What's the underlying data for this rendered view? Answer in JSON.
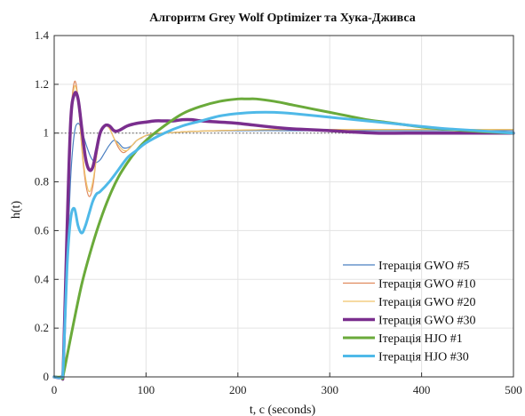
{
  "chart_data": {
    "type": "line",
    "title": "Алгоритм Grey Wolf Optimizer та Хука-Дживса",
    "xlabel": "t, c (seconds)",
    "ylabel": "h(t)",
    "xlim": [
      0,
      500
    ],
    "ylim": [
      0,
      1.4
    ],
    "xticks": [
      0,
      100,
      200,
      300,
      400,
      500
    ],
    "yticks": [
      0,
      0.2,
      0.4,
      0.6,
      0.8,
      1,
      1.2,
      1.4
    ],
    "xtick_labels": [
      "0",
      "100",
      "200",
      "300",
      "400",
      "500"
    ],
    "ytick_labels": [
      "0",
      "0.2",
      "0.4",
      "0.6",
      "0.8",
      "1",
      "1.2",
      "1.4"
    ],
    "grid": true,
    "reference_line": {
      "y": 1,
      "style": "dotted"
    },
    "legend_position": "bottom-right",
    "series": [
      {
        "name": "Ітерація GWO #5",
        "color": "#4a7fc1",
        "width": 1.2,
        "x": [
          0,
          8,
          10,
          14,
          18,
          22,
          26,
          30,
          35,
          40,
          45,
          50,
          55,
          60,
          65,
          70,
          75,
          80,
          85,
          90,
          95,
          100,
          110,
          120,
          140,
          160,
          200,
          250,
          300,
          350,
          400,
          450,
          500
        ],
        "y": [
          0,
          0,
          0.05,
          0.45,
          0.82,
          1.0,
          1.04,
          1.01,
          0.95,
          0.9,
          0.88,
          0.89,
          0.92,
          0.95,
          0.97,
          0.96,
          0.94,
          0.94,
          0.95,
          0.97,
          0.98,
          0.99,
          0.995,
          1.0,
          1.005,
          1.008,
          1.01,
          1.01,
          1.01,
          1.01,
          1.01,
          1.01,
          1.01
        ]
      },
      {
        "name": "Ітерація GWO #10",
        "color": "#e08a5e",
        "width": 1.2,
        "x": [
          0,
          8,
          10,
          14,
          18,
          22,
          26,
          30,
          34,
          38,
          42,
          46,
          50,
          55,
          60,
          65,
          70,
          75,
          80,
          85,
          90,
          100,
          110,
          120,
          140,
          160,
          200,
          250,
          300,
          350,
          400,
          450,
          500
        ],
        "y": [
          0,
          0,
          0.05,
          0.55,
          1.05,
          1.21,
          1.14,
          0.94,
          0.8,
          0.74,
          0.78,
          0.9,
          1.0,
          1.03,
          1.02,
          0.98,
          0.94,
          0.92,
          0.93,
          0.95,
          0.97,
          0.99,
          1.0,
          1.0,
          1.005,
          1.008,
          1.012,
          1.015,
          1.015,
          1.015,
          1.015,
          1.015,
          1.015
        ]
      },
      {
        "name": "Ітерація GWO #20",
        "color": "#f0c46a",
        "width": 1.2,
        "x": [
          0,
          8,
          10,
          14,
          18,
          22,
          26,
          30,
          34,
          38,
          42,
          46,
          50,
          55,
          60,
          65,
          70,
          75,
          80,
          85,
          90,
          100,
          110,
          120,
          140,
          160,
          200,
          250,
          300,
          350,
          400,
          450,
          500
        ],
        "y": [
          0,
          0,
          0.05,
          0.55,
          1.02,
          1.19,
          1.13,
          0.95,
          0.82,
          0.76,
          0.8,
          0.9,
          0.99,
          1.03,
          1.02,
          0.98,
          0.95,
          0.93,
          0.93,
          0.95,
          0.97,
          0.99,
          1.0,
          1.0,
          1.005,
          1.008,
          1.012,
          1.015,
          1.015,
          1.015,
          1.015,
          1.015,
          1.015
        ]
      },
      {
        "name": "Ітерація GWO #30",
        "color": "#7a2e8e",
        "width": 3.5,
        "x": [
          0,
          8,
          10,
          14,
          18,
          22,
          26,
          30,
          34,
          38,
          42,
          46,
          50,
          55,
          60,
          65,
          70,
          80,
          90,
          100,
          110,
          120,
          130,
          140,
          150,
          160,
          180,
          200,
          250,
          300,
          350,
          400,
          450,
          500
        ],
        "y": [
          0,
          0,
          0.05,
          0.6,
          1.05,
          1.16,
          1.14,
          1.02,
          0.9,
          0.85,
          0.86,
          0.93,
          1.0,
          1.03,
          1.03,
          1.01,
          1.01,
          1.03,
          1.04,
          1.045,
          1.05,
          1.05,
          1.05,
          1.055,
          1.055,
          1.05,
          1.045,
          1.04,
          1.02,
          1.01,
          1.0,
          1.0,
          1.0,
          1.0
        ]
      },
      {
        "name": "Ітерація HJO #1",
        "color": "#6aaa3a",
        "width": 3,
        "x": [
          0,
          8,
          10,
          20,
          30,
          40,
          50,
          60,
          70,
          80,
          90,
          100,
          120,
          140,
          160,
          180,
          200,
          210,
          220,
          240,
          260,
          280,
          300,
          320,
          340,
          360,
          380,
          400,
          420,
          440,
          460,
          480,
          500
        ],
        "y": [
          0,
          0,
          0.01,
          0.2,
          0.38,
          0.52,
          0.64,
          0.74,
          0.82,
          0.88,
          0.93,
          0.97,
          1.03,
          1.08,
          1.11,
          1.13,
          1.14,
          1.14,
          1.14,
          1.13,
          1.115,
          1.1,
          1.085,
          1.07,
          1.055,
          1.045,
          1.035,
          1.025,
          1.018,
          1.012,
          1.007,
          1.003,
          1.0
        ]
      },
      {
        "name": "Ітерація HJO #30",
        "color": "#4fb9e8",
        "width": 3,
        "x": [
          0,
          8,
          10,
          14,
          18,
          22,
          26,
          30,
          34,
          38,
          42,
          46,
          50,
          60,
          70,
          80,
          90,
          100,
          120,
          140,
          160,
          180,
          200,
          220,
          240,
          260,
          300,
          340,
          380,
          420,
          460,
          500
        ],
        "y": [
          0,
          0,
          0.05,
          0.45,
          0.65,
          0.69,
          0.62,
          0.59,
          0.62,
          0.67,
          0.72,
          0.75,
          0.76,
          0.8,
          0.85,
          0.9,
          0.93,
          0.96,
          1.0,
          1.03,
          1.05,
          1.07,
          1.08,
          1.085,
          1.085,
          1.08,
          1.065,
          1.05,
          1.035,
          1.02,
          1.01,
          1.0
        ]
      }
    ]
  }
}
